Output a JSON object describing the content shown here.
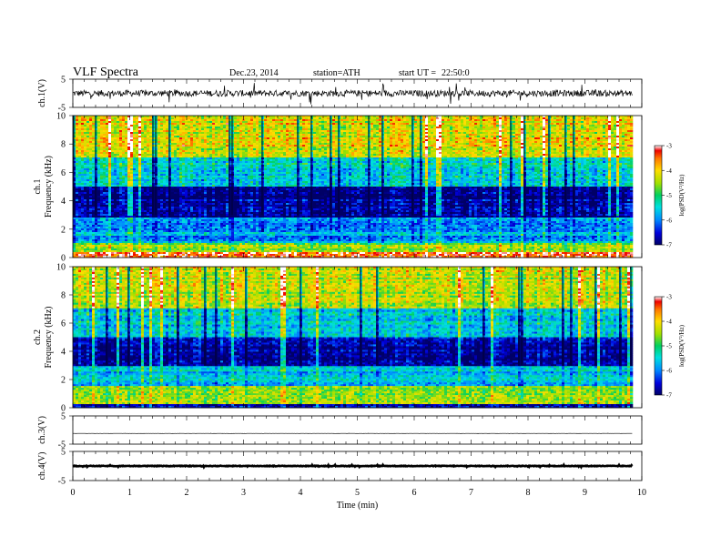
{
  "header": {
    "title": "VLF  Spectra",
    "date": "Dec.23, 2014",
    "station": "station=ATH",
    "start_label": "start  UT  =",
    "start_time": "22:50:0"
  },
  "chart_data": [
    {
      "type": "line",
      "name": "ch1-waveform",
      "ylabel": "ch.1(V)",
      "ylim": [
        -5,
        5
      ],
      "yticks": [
        -5,
        5
      ],
      "xlim": [
        0,
        10
      ],
      "data_end_min": 9.83,
      "baseline_v": 0,
      "noise_amplitude_v": 2.5
    },
    {
      "type": "heatmap",
      "name": "ch1-spectrogram",
      "ylabel_line1": "ch.1",
      "ylabel_line2": "Frequency  (kHz)",
      "ylim": [
        0,
        10
      ],
      "yticks": [
        0,
        2,
        4,
        6,
        8,
        10
      ],
      "xlim": [
        0,
        10
      ],
      "data_end_min": 9.83,
      "colorbar": {
        "label": "log(PSD(V²/Hz)",
        "range": [
          -7,
          -3
        ],
        "ticks": [
          -7,
          -6,
          -5,
          -4,
          -3
        ]
      },
      "bands": [
        {
          "f_min_khz": 0,
          "f_max_khz": 0.4,
          "log_psd": -3.2
        },
        {
          "f_min_khz": 0.4,
          "f_max_khz": 1.0,
          "log_psd": -4.5
        },
        {
          "f_min_khz": 1.0,
          "f_max_khz": 2.8,
          "log_psd": -5.8
        },
        {
          "f_min_khz": 2.8,
          "f_max_khz": 5.0,
          "log_psd": -6.8
        },
        {
          "f_min_khz": 5.0,
          "f_max_khz": 7.0,
          "log_psd": -5.4
        },
        {
          "f_min_khz": 7.0,
          "f_max_khz": 10.0,
          "log_psd": -4.1
        }
      ]
    },
    {
      "type": "heatmap",
      "name": "ch2-spectrogram",
      "ylabel_line1": "ch.2",
      "ylabel_line2": "Frequency  (kHz)",
      "ylim": [
        0,
        10
      ],
      "yticks": [
        0,
        2,
        4,
        6,
        8,
        10
      ],
      "xlim": [
        0,
        10
      ],
      "data_end_min": 9.83,
      "colorbar": {
        "label": "log(PSD(V²/Hz)",
        "range": [
          -7,
          -3
        ],
        "ticks": [
          -7,
          -6,
          -5,
          -4,
          -3
        ]
      },
      "bands": [
        {
          "f_min_khz": 0,
          "f_max_khz": 0.3,
          "log_psd": -6.8
        },
        {
          "f_min_khz": 0.3,
          "f_max_khz": 1.6,
          "log_psd": -4.6
        },
        {
          "f_min_khz": 1.6,
          "f_max_khz": 3.0,
          "log_psd": -5.6
        },
        {
          "f_min_khz": 3.0,
          "f_max_khz": 5.0,
          "log_psd": -6.7
        },
        {
          "f_min_khz": 5.0,
          "f_max_khz": 7.0,
          "log_psd": -5.5
        },
        {
          "f_min_khz": 7.0,
          "f_max_khz": 10.0,
          "log_psd": -4.3
        }
      ]
    },
    {
      "type": "line",
      "name": "ch3-waveform",
      "ylabel": "ch.3(V)",
      "ylim": [
        -5,
        5
      ],
      "yticks": [
        -5,
        5
      ],
      "xlim": [
        0,
        10
      ],
      "data_end_min": 9.83,
      "baseline_v": -1.2,
      "noise_amplitude_v": 0.05
    },
    {
      "type": "line",
      "name": "ch4-waveform",
      "ylabel": "ch.4(V)",
      "ylim": [
        -5,
        5
      ],
      "yticks": [
        -5,
        5
      ],
      "xlim": [
        0,
        10
      ],
      "data_end_min": 9.83,
      "baseline_v": 0,
      "noise_amplitude_v": 0.25
    }
  ],
  "xaxis": {
    "label": "Time  (min)",
    "ticks": [
      0,
      1,
      2,
      3,
      4,
      5,
      6,
      7,
      8,
      9,
      10
    ]
  }
}
